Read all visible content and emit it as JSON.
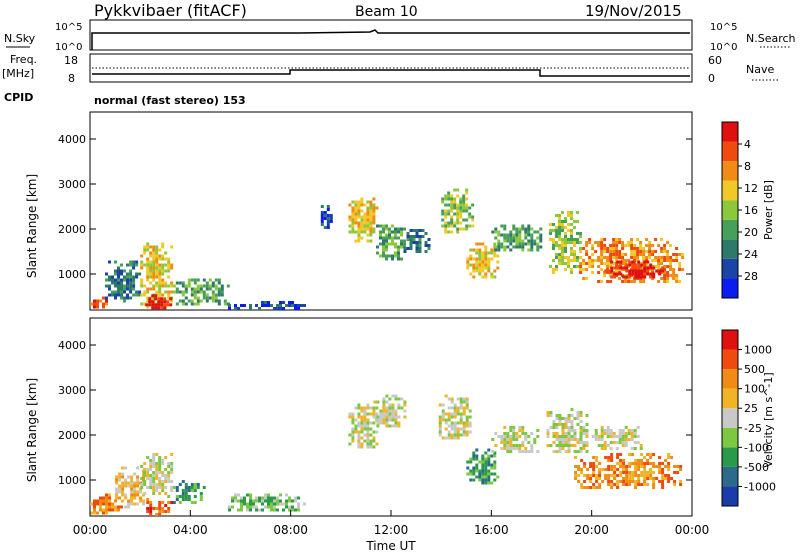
{
  "header": {
    "site": "Pykkvibaer (fitACF)",
    "beam": "Beam 10",
    "date": "19/Nov/2015"
  },
  "aux": {
    "nsky_label": "N.Sky",
    "nsky_ticks": [
      "10^5",
      "10^0"
    ],
    "nsearch_label": "N.Search",
    "nsearch_ticks": [
      "10^5",
      "10^0"
    ],
    "freq_label": "Freq.",
    "freq_unit": "[MHz]",
    "freq_ticks": [
      "18",
      "8"
    ],
    "nave_label": "Nave",
    "nave_ticks": [
      "60",
      "0"
    ],
    "cpid_label": "CPID",
    "cpid_value": "normal (fast stereo) 153"
  },
  "chart_data": [
    {
      "type": "heatmap",
      "panel": "power",
      "ylabel": "Slant Range [km]",
      "yticks": [
        1000,
        2000,
        3000,
        4000
      ],
      "ylim": [
        200,
        4600
      ],
      "xlim_hours": [
        0,
        24
      ],
      "colorbar": {
        "title": "Power [dB]",
        "ticks": [
          "4",
          "8",
          "12",
          "16",
          "20",
          "24",
          "28"
        ],
        "colors": [
          "#0a1cf0",
          "#1a44a8",
          "#2e7a6a",
          "#46a05a",
          "#8cc83c",
          "#f0c828",
          "#f08c14",
          "#f04a10",
          "#e01010"
        ]
      },
      "echo_regions": [
        {
          "t0": 0.0,
          "t1": 0.7,
          "r0": 250,
          "r1": 500,
          "level": 7
        },
        {
          "t0": 0.6,
          "t1": 2.0,
          "r0": 400,
          "r1": 1300,
          "level": 2
        },
        {
          "t0": 2.0,
          "t1": 3.3,
          "r0": 250,
          "r1": 1700,
          "level": 5
        },
        {
          "t0": 2.2,
          "t1": 3.2,
          "r0": 250,
          "r1": 550,
          "level": 8
        },
        {
          "t0": 3.3,
          "t1": 5.5,
          "r0": 300,
          "r1": 900,
          "level": 3
        },
        {
          "t0": 5.5,
          "t1": 8.5,
          "r0": 250,
          "r1": 400,
          "level": 1
        },
        {
          "t0": 9.2,
          "t1": 9.6,
          "r0": 2000,
          "r1": 2600,
          "level": 1
        },
        {
          "t0": 10.3,
          "t1": 11.4,
          "r0": 1700,
          "r1": 2700,
          "level": 5
        },
        {
          "t0": 11.4,
          "t1": 12.5,
          "r0": 1300,
          "r1": 2100,
          "level": 3
        },
        {
          "t0": 12.5,
          "t1": 13.5,
          "r0": 1500,
          "r1": 2000,
          "level": 2
        },
        {
          "t0": 14.0,
          "t1": 15.2,
          "r0": 1900,
          "r1": 2900,
          "level": 4
        },
        {
          "t0": 15.0,
          "t1": 16.2,
          "r0": 900,
          "r1": 1700,
          "level": 5
        },
        {
          "t0": 16.0,
          "t1": 18.0,
          "r0": 1500,
          "r1": 2100,
          "level": 3
        },
        {
          "t0": 18.3,
          "t1": 19.5,
          "r0": 1000,
          "r1": 2400,
          "level": 4
        },
        {
          "t0": 19.5,
          "t1": 23.6,
          "r0": 800,
          "r1": 1800,
          "level": 6
        },
        {
          "t0": 20.5,
          "t1": 22.8,
          "r0": 900,
          "r1": 1300,
          "level": 8
        }
      ]
    },
    {
      "type": "heatmap",
      "panel": "velocity",
      "ylabel": "Slant Range [km]",
      "xlabel": "Time UT",
      "yticks": [
        1000,
        2000,
        3000,
        4000
      ],
      "ylim": [
        200,
        4600
      ],
      "xlim_hours": [
        0,
        24
      ],
      "xticks": [
        "00:00",
        "04:00",
        "08:00",
        "12:00",
        "16:00",
        "20:00",
        "00:00"
      ],
      "colorbar": {
        "title": "Velocity [m s^-1]",
        "ticks": [
          "1000",
          "500",
          "100",
          "25",
          "-25",
          "-100",
          "-500",
          "-1000"
        ],
        "colors": [
          "#1a3ca8",
          "#2c6a8c",
          "#2a9a4a",
          "#7cc840",
          "#c8c8c8",
          "#f0b428",
          "#f08c14",
          "#f04a10",
          "#e01010"
        ]
      },
      "echo_regions": [
        {
          "t0": 0.0,
          "t1": 1.2,
          "r0": 250,
          "r1": 700,
          "level": 6
        },
        {
          "t0": 1.0,
          "t1": 2.1,
          "r0": 400,
          "r1": 1300,
          "level": 5
        },
        {
          "t0": 2.0,
          "t1": 3.3,
          "r0": 600,
          "r1": 1600,
          "level": 4
        },
        {
          "t0": 2.0,
          "t1": 3.3,
          "r0": 250,
          "r1": 600,
          "level": 7
        },
        {
          "t0": 3.3,
          "t1": 4.5,
          "r0": 500,
          "r1": 1000,
          "level": 2
        },
        {
          "t0": 5.5,
          "t1": 8.5,
          "r0": 300,
          "r1": 700,
          "level": 3
        },
        {
          "t0": 10.3,
          "t1": 11.4,
          "r0": 1700,
          "r1": 2700,
          "level": 4
        },
        {
          "t0": 11.3,
          "t1": 12.5,
          "r0": 2200,
          "r1": 2900,
          "level": 4
        },
        {
          "t0": 13.9,
          "t1": 15.2,
          "r0": 1900,
          "r1": 2900,
          "level": 4
        },
        {
          "t0": 15.0,
          "t1": 16.2,
          "r0": 900,
          "r1": 1700,
          "level": 2
        },
        {
          "t0": 16.0,
          "t1": 17.8,
          "r0": 1600,
          "r1": 2200,
          "level": 4
        },
        {
          "t0": 18.2,
          "t1": 19.8,
          "r0": 1600,
          "r1": 2600,
          "level": 4
        },
        {
          "t0": 19.3,
          "t1": 23.5,
          "r0": 800,
          "r1": 1600,
          "level": 6
        },
        {
          "t0": 20.0,
          "t1": 22.0,
          "r0": 1700,
          "r1": 2200,
          "level": 4
        }
      ]
    }
  ]
}
